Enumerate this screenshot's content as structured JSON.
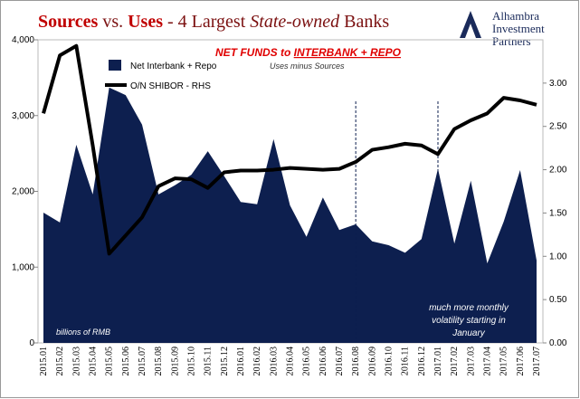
{
  "chart_data": {
    "type": "area-line",
    "title": [
      "Sources",
      " vs. ",
      "Uses",
      " - 4 Largest ",
      "State-owned",
      " Banks"
    ],
    "logo": [
      "Alhambra",
      "Investment",
      "Partners"
    ],
    "annotations": {
      "heading": [
        "NET FUNDS to ",
        "INTERBANK + REPO"
      ],
      "subheading": "Uses minus Sources",
      "units": "billions of RMB",
      "note": [
        "much more monthly",
        "volatility starting in",
        "January"
      ]
    },
    "categories": [
      "2015.01",
      "2015.02",
      "2015.03",
      "2015.04",
      "2015.05",
      "2015.06",
      "2015.07",
      "2015.08",
      "2015.09",
      "2015.10",
      "2015.11",
      "2015.12",
      "2016.01",
      "2016.02",
      "2016.03",
      "2016.04",
      "2016.05",
      "2016.06",
      "2016.07",
      "2016.08",
      "2016.09",
      "2016.10",
      "2016.11",
      "2016.12",
      "2017.01",
      "2017.02",
      "2017.03",
      "2017.04",
      "2017.05",
      "2017.06",
      "2017.07"
    ],
    "series": [
      {
        "name": "Net Interbank + Repo",
        "color": "#0d1f4f",
        "values": [
          1720,
          1590,
          2615,
          1960,
          3370,
          3270,
          2880,
          1960,
          2080,
          2220,
          2530,
          2200,
          1860,
          1830,
          2690,
          1815,
          1400,
          1920,
          1490,
          1565,
          1340,
          1290,
          1190,
          1370,
          2300,
          1310,
          2140,
          1050,
          1600,
          2280,
          1090
        ]
      },
      {
        "name": "O/N SHIBOR - RHS",
        "color": "#000000",
        "axis": "y2",
        "values": [
          2.65,
          3.32,
          3.43,
          2.28,
          1.03,
          1.24,
          1.45,
          1.81,
          1.9,
          1.89,
          1.79,
          1.97,
          1.99,
          1.99,
          2.0,
          2.02,
          2.01,
          2.0,
          2.01,
          2.09,
          2.23,
          2.26,
          2.3,
          2.28,
          2.18,
          2.47,
          2.57,
          2.65,
          2.83,
          2.8,
          2.75
        ]
      }
    ],
    "ylim": [
      0,
      4000
    ],
    "yticks": [
      0,
      {
        "value": 1000,
        "label": "1,000"
      },
      {
        "value": 2000,
        "label": "2,000"
      },
      {
        "value": 3000,
        "label": "3,000"
      },
      {
        "value": 4000,
        "label": "4,000"
      }
    ],
    "y2lim": [
      0,
      3.5
    ],
    "y2ticks": [
      {
        "value": 0,
        "label": "0.00"
      },
      {
        "value": 0.5,
        "label": "0.50"
      },
      {
        "value": 1,
        "label": "1.00"
      },
      {
        "value": 1.5,
        "label": "1.50"
      },
      {
        "value": 2,
        "label": "2.00"
      },
      {
        "value": 2.5,
        "label": "2.50"
      },
      {
        "value": 3,
        "label": "3.00"
      }
    ],
    "legend": "upper left"
  }
}
